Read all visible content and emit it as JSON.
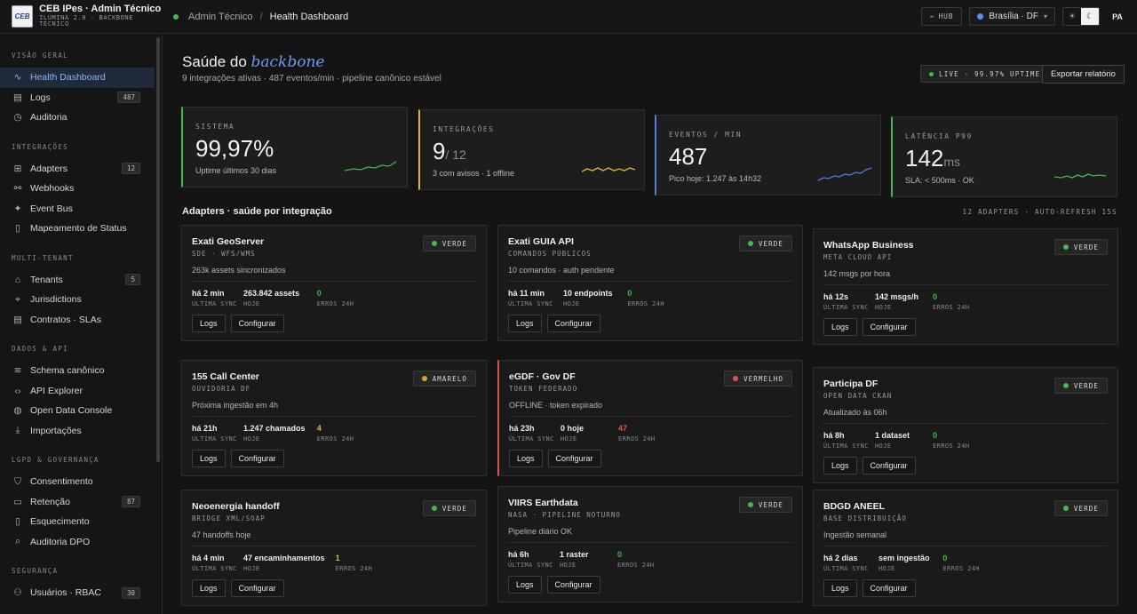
{
  "header": {
    "logo_text": "CEB",
    "app_title": "CEB IPes · Admin Técnico",
    "app_subtitle": "ILUMINA 2.0 · BACKBONE TÉCNICO",
    "breadcrumb": [
      "Admin Técnico",
      "Health Dashboard"
    ],
    "hub_label": "HUB",
    "region_label": "Brasília · DF",
    "avatar_initials": "PA"
  },
  "sidebar": {
    "groups": [
      {
        "title": "VISÃO GERAL",
        "items": [
          {
            "label": "Health Dashboard",
            "icon": "pulse-icon",
            "active": true
          },
          {
            "label": "Logs",
            "icon": "document-icon",
            "badge": "487"
          },
          {
            "label": "Auditoria",
            "icon": "clock-icon"
          }
        ]
      },
      {
        "title": "INTEGRAÇÕES",
        "items": [
          {
            "label": "Adapters",
            "icon": "grid-icon",
            "badge": "12"
          },
          {
            "label": "Webhooks",
            "icon": "webhook-icon"
          },
          {
            "label": "Event Bus",
            "icon": "sparkle-icon"
          },
          {
            "label": "Mapeamento de Status",
            "icon": "file-icon"
          }
        ]
      },
      {
        "title": "MULTI-TENANT",
        "items": [
          {
            "label": "Tenants",
            "icon": "building-icon",
            "badge": "5"
          },
          {
            "label": "Jurisdictions",
            "icon": "pin-icon"
          },
          {
            "label": "Contratos · SLAs",
            "icon": "document-icon"
          }
        ]
      },
      {
        "title": "DADOS & API",
        "items": [
          {
            "label": "Schema canônico",
            "icon": "database-icon"
          },
          {
            "label": "API Explorer",
            "icon": "code-icon"
          },
          {
            "label": "Open Data Console",
            "icon": "globe-icon"
          },
          {
            "label": "Importações",
            "icon": "download-icon"
          }
        ]
      },
      {
        "title": "LGPD & GOVERNANÇA",
        "items": [
          {
            "label": "Consentimento",
            "icon": "shield-icon"
          },
          {
            "label": "Retenção",
            "icon": "archive-icon",
            "badge": "87"
          },
          {
            "label": "Esquecimento",
            "icon": "trash-icon"
          },
          {
            "label": "Auditoria DPO",
            "icon": "search-icon"
          }
        ]
      },
      {
        "title": "SEGURANÇA",
        "items": [
          {
            "label": "Usuários · RBAC",
            "icon": "users-icon",
            "badge": "30"
          }
        ]
      }
    ]
  },
  "page": {
    "title_prefix": "Saúde do ",
    "title_em": "backbone",
    "subtitle": "9 integrações ativas · 487 eventos/min · pipeline canônico estável",
    "live_pill": "LIVE · 99.97% UPTIME",
    "export_label": "Exportar relatório"
  },
  "kpis": [
    {
      "label": "SISTEMA",
      "value": "99,97%",
      "note": "Uptime últimos 30 dias",
      "color": "#3fb950"
    },
    {
      "label": "INTEGRAÇÕES",
      "value": "9",
      "value_suffix": "/ 12",
      "note": "3 com avisos · 1 offline",
      "color": "#e3b341"
    },
    {
      "label": "EVENTOS / MIN",
      "value": "487",
      "note": "Pico hoje: 1.247 às 14h32",
      "color": "#4f7fe0"
    },
    {
      "label": "LATÊNCIA P99",
      "value": "142",
      "value_suffix": "ms",
      "note": "SLA: < 500ms · OK",
      "color": "#3fb950"
    }
  ],
  "adapters_section": {
    "title": "Adapters · saúde por integração",
    "meta": "12 ADAPTERS · AUTO-REFRESH 15S"
  },
  "status_colors": {
    "VERDE": "#3fb950",
    "AMARELO": "#d4a72c",
    "VERMELHO": "#d9534f"
  },
  "adapters": [
    {
      "name": "Exati GeoServer",
      "sub": "SDE · WFS/WMS",
      "status": "VERDE",
      "desc": "263k assets sincronizados",
      "sync": "há 2 min",
      "today": "263.842 assets",
      "errors": "0",
      "err_level": "g"
    },
    {
      "name": "Exati GUIA API",
      "sub": "COMANDOS PÚBLICOS",
      "status": "VERDE",
      "desc": "10 comandos · auth pendente",
      "sync": "há 11 min",
      "today": "10 endpoints",
      "errors": "0",
      "err_level": "g"
    },
    {
      "name": "WhatsApp Business",
      "sub": "META CLOUD API",
      "status": "VERDE",
      "desc": "142 msgs por hora",
      "sync": "há 12s",
      "today": "142 msgs/h",
      "errors": "0",
      "err_level": "g"
    },
    {
      "name": "155 Call Center",
      "sub": "OUVIDORIA DF",
      "status": "AMARELO",
      "desc": "Próxima ingestão em 4h",
      "sync": "há 21h",
      "today": "1.247 chamados",
      "errors": "4",
      "err_level": "y"
    },
    {
      "name": "eGDF · Gov DF",
      "sub": "TOKEN FEDERADO",
      "status": "VERMELHO",
      "desc": "OFFLINE · token expirado",
      "sync": "há 23h",
      "today": "0 hoje",
      "errors": "47",
      "err_level": "r"
    },
    {
      "name": "Participa DF",
      "sub": "OPEN DATA CKAN",
      "status": "VERDE",
      "desc": "Atualizado às 06h",
      "sync": "há 8h",
      "today": "1 dataset",
      "errors": "0",
      "err_level": "g"
    },
    {
      "name": "Neoenergia handoff",
      "sub": "BRIDGE XML/SOAP",
      "status": "VERDE",
      "desc": "47 handoffs hoje",
      "sync": "há 4 min",
      "today": "47 encaminhamentos",
      "errors": "1",
      "err_level": "y"
    },
    {
      "name": "VIIRS Earthdata",
      "sub": "NASA · PIPELINE NOTURNO",
      "status": "VERDE",
      "desc": "Pipeline diário OK",
      "sync": "há 6h",
      "today": "1 raster",
      "errors": "0",
      "err_level": "g"
    },
    {
      "name": "BDGD ANEEL",
      "sub": "BASE DISTRIBUIÇÃO",
      "status": "VERDE",
      "desc": "Ingestão semanal",
      "sync": "há 2 dias",
      "today": "sem ingestão",
      "errors": "0",
      "err_level": "g"
    }
  ],
  "labels": {
    "sync": "ÚLTIMA SYNC",
    "today": "HOJE",
    "errors": "ERROS 24H",
    "logs_btn": "Logs",
    "config_btn": "Configurar"
  }
}
